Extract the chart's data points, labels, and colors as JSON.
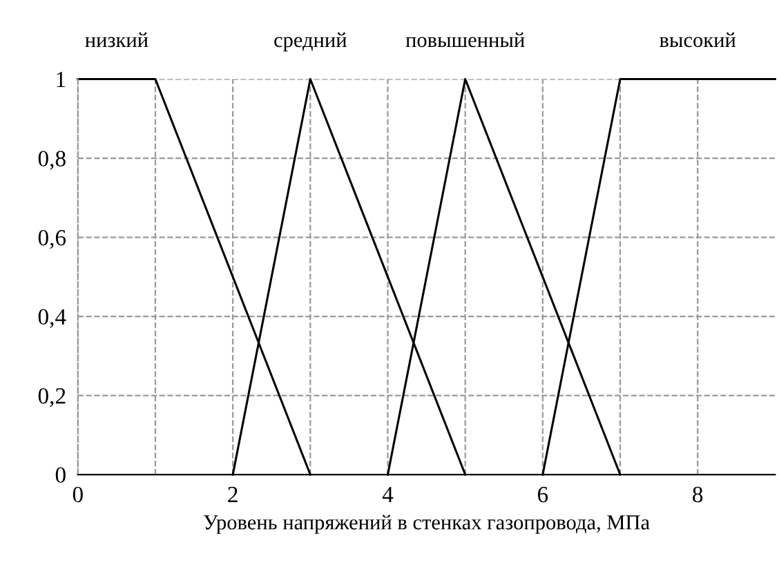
{
  "chart_data": {
    "type": "line",
    "xlabel": "Уровень напряжений в стенках газопровода, МПа",
    "series": [
      {
        "name": "низкий",
        "color": "#000000",
        "x": [
          0,
          1,
          3
        ],
        "values": [
          1,
          1,
          0
        ]
      },
      {
        "name": "средний",
        "color": "#000000",
        "x": [
          2,
          3,
          5
        ],
        "values": [
          0,
          1,
          0
        ]
      },
      {
        "name": "повышенный",
        "color": "#000000",
        "x": [
          4,
          5,
          7
        ],
        "values": [
          0,
          1,
          0
        ]
      },
      {
        "name": "высокий",
        "color": "#000000",
        "x": [
          6,
          7,
          9
        ],
        "values": [
          0,
          1,
          1
        ]
      }
    ],
    "xlim": [
      0,
      9
    ],
    "ylim": [
      0,
      1
    ],
    "xticks": [
      0,
      {
        "value": 1,
        "label": null
      },
      2,
      {
        "value": 3,
        "label": null
      },
      4,
      {
        "value": 5,
        "label": null
      },
      6,
      {
        "value": 7,
        "label": null
      },
      8
    ],
    "yticks": [
      0,
      {
        "value": 0.2,
        "label": "0,2"
      },
      {
        "value": 0.4,
        "label": "0,4"
      },
      {
        "value": 0.6,
        "label": "0,6"
      },
      {
        "value": 0.8,
        "label": "0,8"
      },
      1
    ],
    "grid": true,
    "line_style": "solid",
    "marker": "none",
    "legend": false
  }
}
